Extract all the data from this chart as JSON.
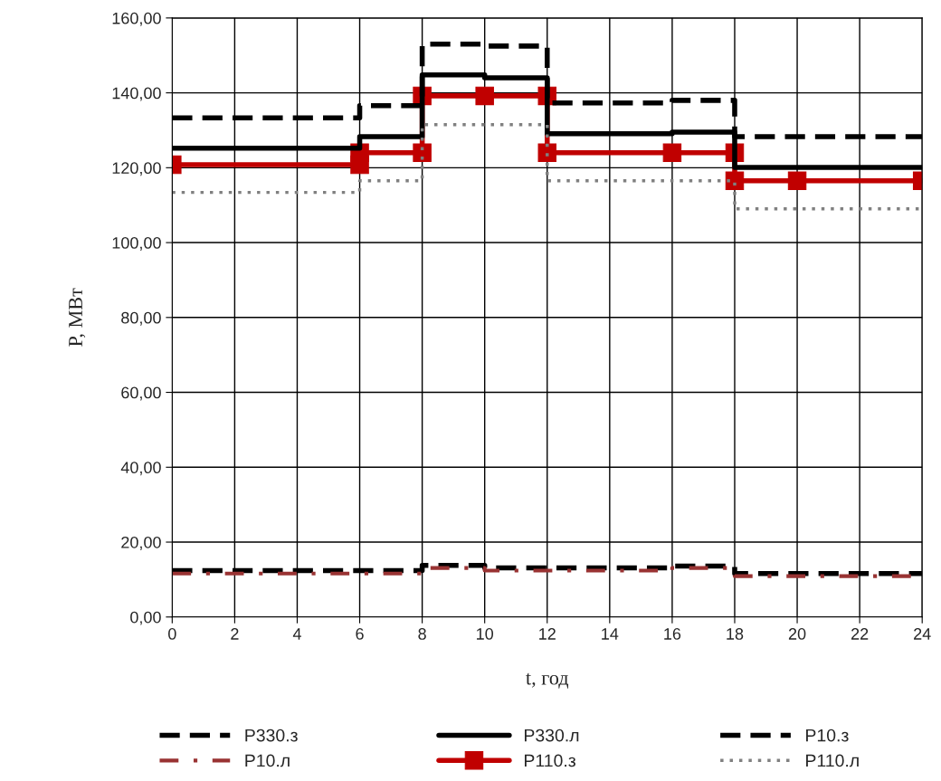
{
  "chart_data": {
    "type": "line",
    "xlabel": "t, год",
    "ylabel": "P, МВт",
    "xlim": [
      0,
      24
    ],
    "xticks": [
      0,
      2,
      4,
      6,
      8,
      10,
      12,
      14,
      16,
      18,
      20,
      22,
      24
    ],
    "ylim": [
      0,
      160
    ],
    "yticks": [
      {
        "value": 0,
        "label": "0,00"
      },
      {
        "value": 20,
        "label": "20,00"
      },
      {
        "value": 40,
        "label": "40,00"
      },
      {
        "value": 60,
        "label": "60,00"
      },
      {
        "value": 80,
        "label": "80,00"
      },
      {
        "value": 100,
        "label": "100,00"
      },
      {
        "value": 120,
        "label": "120,00"
      },
      {
        "value": 140,
        "label": "140,00"
      },
      {
        "value": 160,
        "label": "160,00"
      }
    ],
    "grid": true,
    "legend": "bottom",
    "series": [
      {
        "name": "P330.з",
        "color": "#000000",
        "line_style": "dashed",
        "marker": "none",
        "x": [
          0,
          6,
          6,
          8,
          8,
          10,
          10,
          12,
          12,
          16,
          16,
          18,
          18,
          24
        ],
        "values": [
          133.3,
          133.3,
          136.6,
          136.6,
          153.0,
          153.0,
          152.5,
          152.5,
          137.3,
          137.3,
          138.0,
          138.0,
          128.3,
          128.3
        ]
      },
      {
        "name": "P330.л",
        "color": "#000000",
        "line_style": "solid",
        "marker": "none",
        "x": [
          0,
          6,
          6,
          8,
          8,
          10,
          10,
          12,
          12,
          16,
          16,
          18,
          18,
          24
        ],
        "values": [
          125.2,
          125.2,
          128.3,
          128.3,
          144.8,
          144.8,
          144.0,
          144.0,
          129.1,
          129.1,
          129.5,
          129.5,
          120.1,
          120.1
        ]
      },
      {
        "name": "P10.з",
        "color": "#000000",
        "line_style": "dashed",
        "marker": "none",
        "x": [
          0,
          6,
          6,
          8,
          8,
          10,
          10,
          12,
          12,
          16,
          16,
          18,
          18,
          24
        ],
        "values": [
          12.4,
          12.4,
          12.4,
          12.4,
          13.8,
          13.8,
          13.1,
          13.1,
          13.1,
          13.1,
          13.6,
          13.6,
          11.6,
          11.6
        ]
      },
      {
        "name": "P10.л",
        "color": "#993333",
        "line_style": "dashdot",
        "marker": "none",
        "x": [
          0,
          6,
          6,
          8,
          8,
          10,
          10,
          12,
          12,
          16,
          16,
          18,
          18,
          24
        ],
        "values": [
          11.6,
          11.6,
          11.6,
          11.6,
          13.1,
          13.1,
          12.4,
          12.4,
          12.4,
          12.4,
          13.1,
          13.1,
          10.9,
          10.9
        ]
      },
      {
        "name": "P110.з",
        "color": "#c00000",
        "line_style": "solid",
        "marker": "square",
        "x": [
          0,
          6,
          6,
          8,
          8,
          10,
          12,
          12,
          16,
          18,
          18,
          20,
          24
        ],
        "values": [
          120.8,
          120.8,
          124.0,
          124.0,
          139.2,
          139.2,
          139.2,
          124.0,
          124.0,
          124.0,
          116.5,
          116.5,
          116.5
        ]
      },
      {
        "name": "P110.л",
        "color": "#808080",
        "line_style": "dotted",
        "marker": "none",
        "x": [
          0,
          6,
          6,
          8,
          8,
          10,
          10,
          12,
          12,
          16,
          16,
          18,
          18,
          24
        ],
        "values": [
          113.4,
          113.4,
          116.5,
          116.5,
          131.5,
          131.5,
          131.5,
          131.5,
          116.5,
          116.5,
          116.5,
          116.5,
          109.0,
          109.0
        ]
      }
    ]
  }
}
